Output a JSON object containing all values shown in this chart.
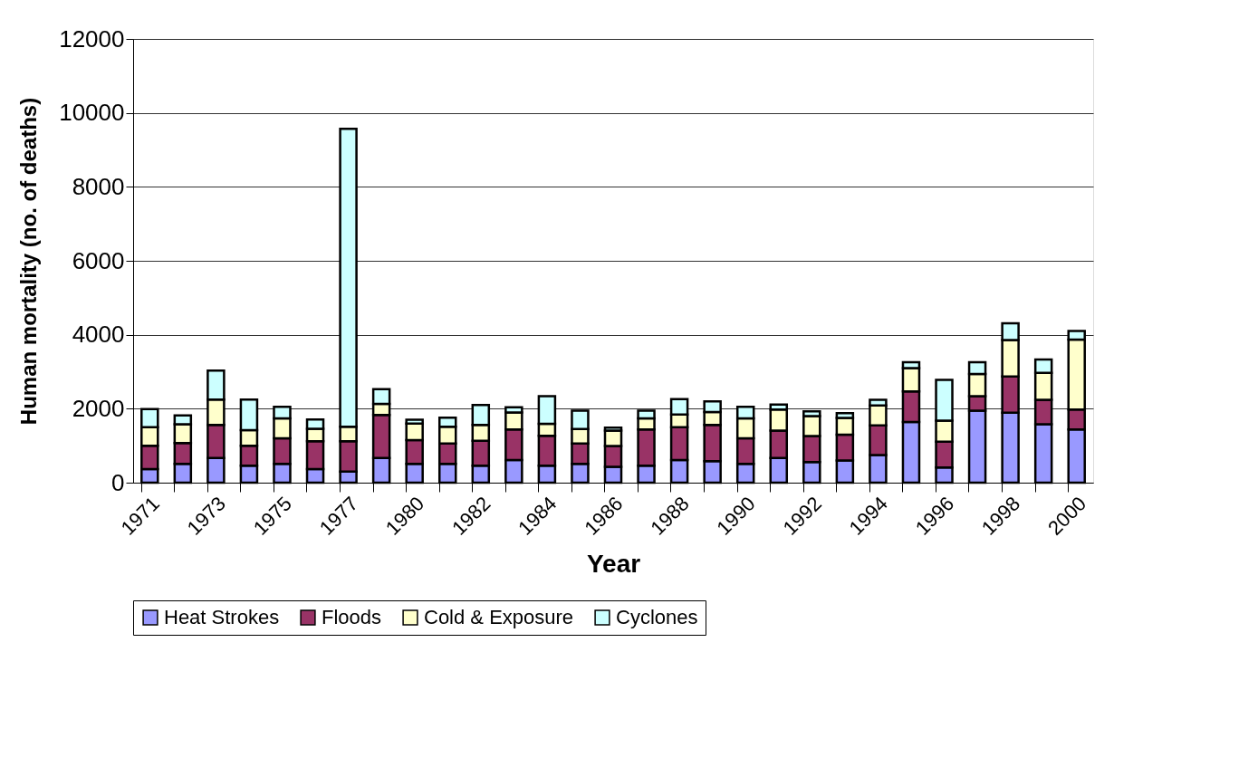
{
  "chart_data": {
    "type": "bar",
    "stacked": true,
    "xlabel": "Year",
    "ylabel": "Human mortality (no. of deaths)",
    "categories": [
      "1971",
      null,
      "1973",
      null,
      "1975",
      null,
      "1977",
      null,
      "1980",
      null,
      "1982",
      null,
      "1984",
      null,
      "1986",
      null,
      "1988",
      null,
      "1990",
      null,
      "1992",
      null,
      "1994",
      null,
      "1996",
      null,
      "1998",
      null,
      "2000"
    ],
    "ylim": [
      0,
      12000
    ],
    "yticks": [
      0,
      2000,
      4000,
      6000,
      8000,
      10000,
      12000
    ],
    "grid": "y",
    "legend": "bottom",
    "series": [
      {
        "name": "Heat Strokes",
        "color": "#9999ff",
        "values": [
          370,
          510,
          670,
          460,
          510,
          370,
          300,
          670,
          510,
          510,
          460,
          610,
          460,
          510,
          430,
          460,
          610,
          580,
          510,
          670,
          560,
          600,
          750,
          1640,
          410,
          1950,
          1890,
          1580,
          1440
        ]
      },
      {
        "name": "Floods",
        "color": "#993366",
        "values": [
          630,
          560,
          890,
          540,
          690,
          750,
          820,
          1160,
          640,
          550,
          670,
          830,
          810,
          550,
          560,
          980,
          890,
          980,
          690,
          740,
          700,
          700,
          800,
          830,
          700,
          390,
          980,
          660,
          540
        ]
      },
      {
        "name": "Cold & Exposure",
        "color": "#ffffcc",
        "values": [
          500,
          510,
          690,
          420,
          540,
          340,
          390,
          300,
          450,
          450,
          430,
          460,
          320,
          390,
          420,
          300,
          340,
          350,
          540,
          570,
          540,
          450,
          540,
          630,
          570,
          600,
          990,
          730,
          1890
        ]
      },
      {
        "name": "Cyclones",
        "color": "#ccffff",
        "values": [
          490,
          240,
          780,
          830,
          310,
          250,
          8060,
          400,
          100,
          250,
          540,
          140,
          750,
          500,
          80,
          210,
          420,
          290,
          310,
          130,
          130,
          130,
          150,
          160,
          1100,
          320,
          450,
          360,
          230
        ]
      }
    ]
  }
}
